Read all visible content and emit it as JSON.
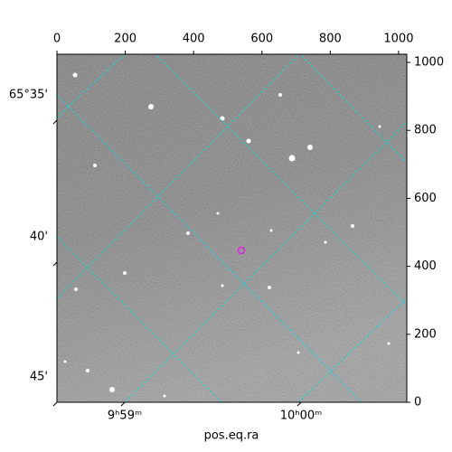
{
  "chart_data": {
    "type": "image",
    "xlabel": "pos.eq.ra",
    "xlim": [
      0,
      1024
    ],
    "xticks": [
      0,
      200,
      400,
      600,
      800,
      1000
    ],
    "ylim": [
      0,
      1024
    ],
    "yticks": [
      0,
      200,
      400,
      600,
      800,
      1000
    ],
    "dec_ticks": [
      "65°35'",
      "40'",
      "45'"
    ],
    "ra_ticks": [
      "9ʰ59ᵐ",
      "10ʰ00ᵐ"
    ],
    "grid": true,
    "grid_color": "#20d0d0",
    "marker_color": "#e020e0"
  }
}
